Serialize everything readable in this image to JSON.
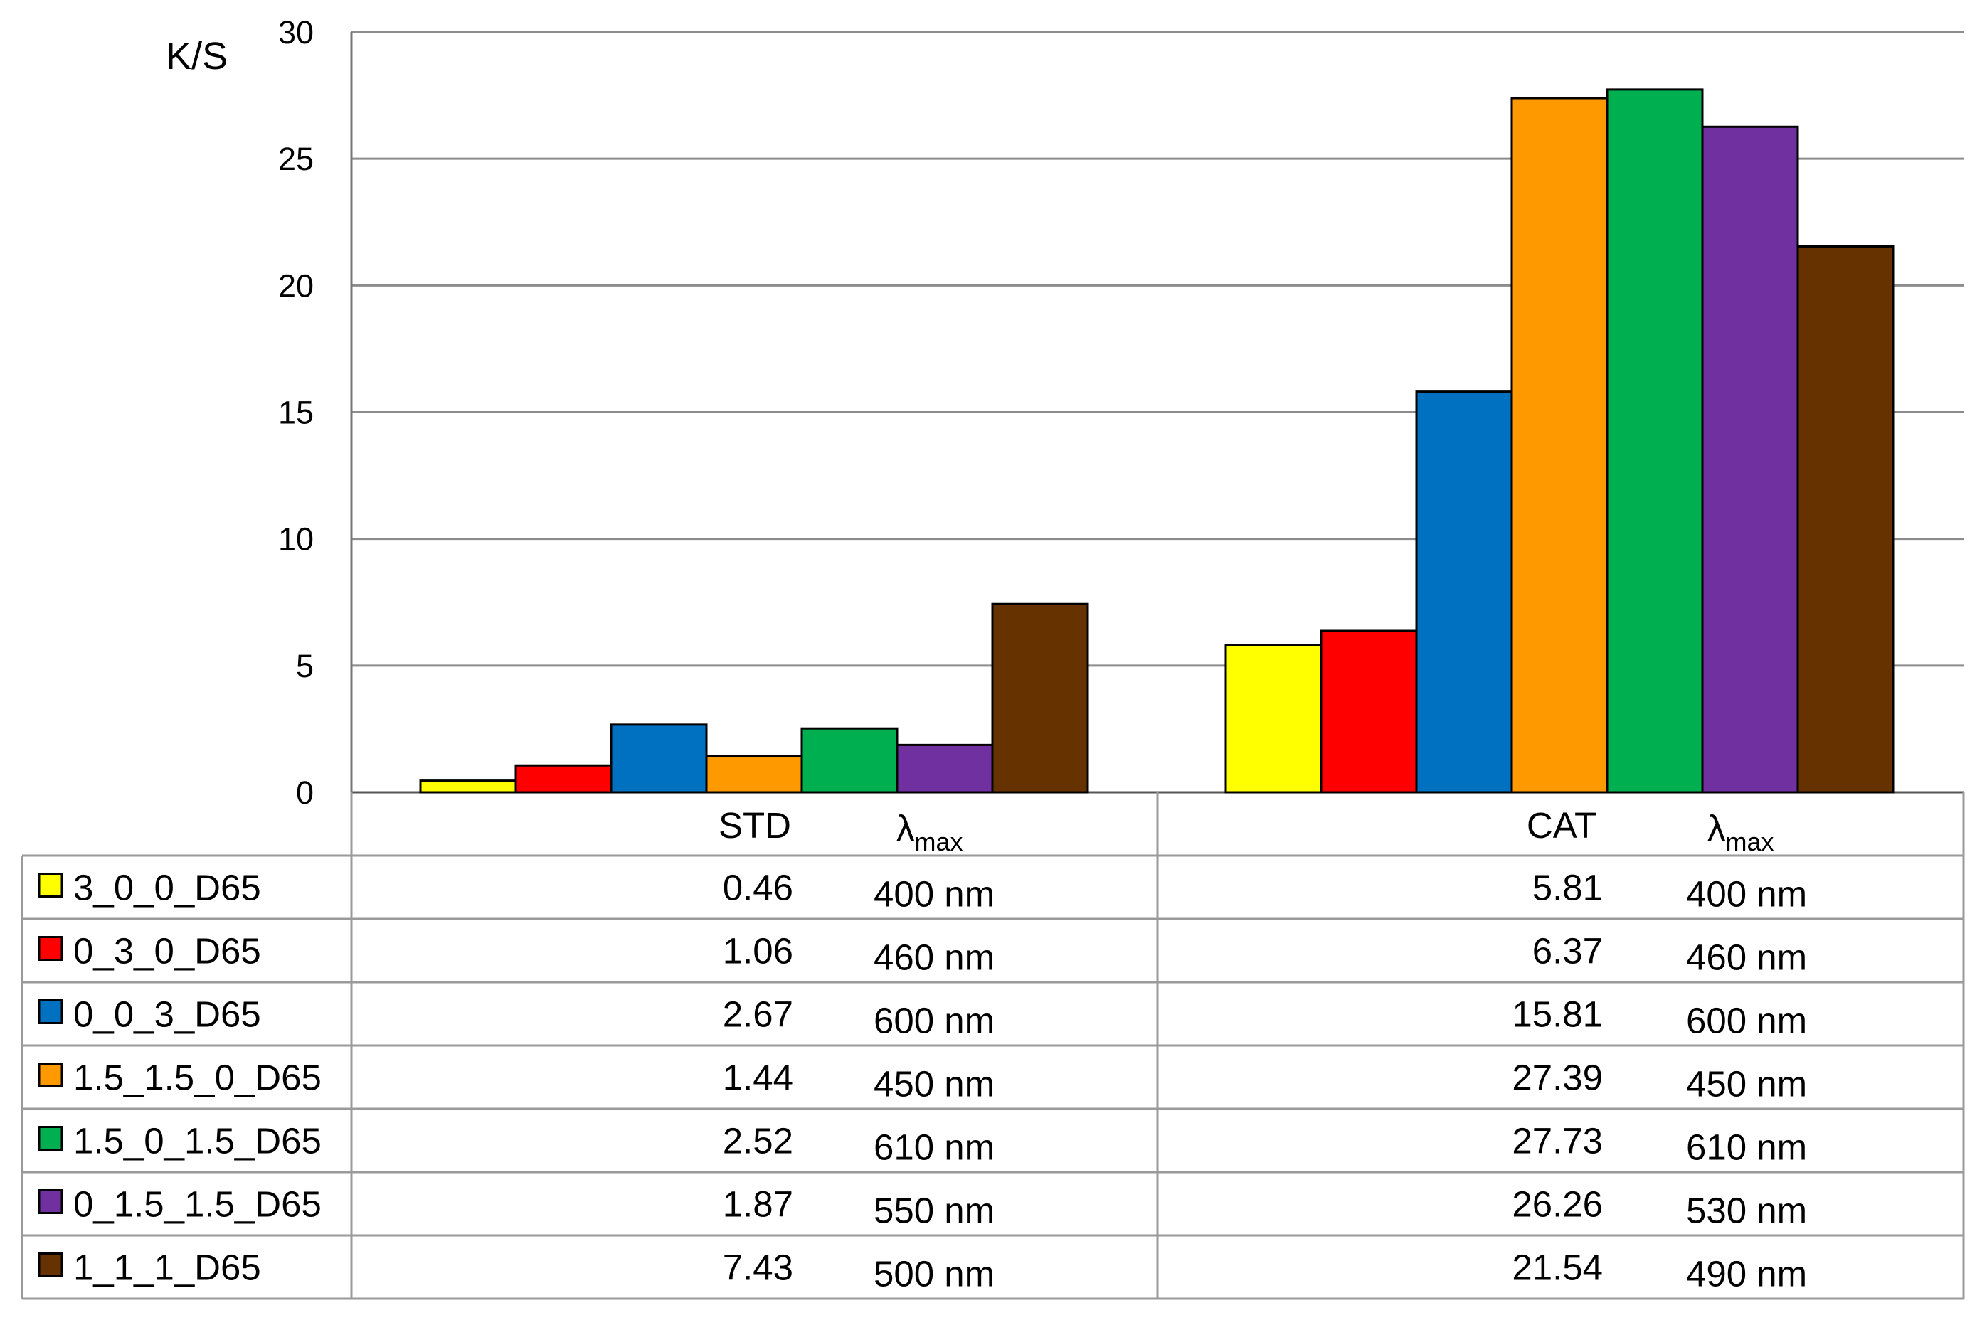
{
  "chart_data": {
    "type": "bar",
    "ylabel": "K/S",
    "ylim": [
      0,
      30
    ],
    "yticks": [
      "0",
      "5",
      "10",
      "15",
      "20",
      "25",
      "30"
    ],
    "grid": true,
    "legend_placement": "data-table-left",
    "categories": [
      "STD",
      "CAT"
    ],
    "lambda_symbol": "λ",
    "lambda_subscript": "max",
    "series": [
      {
        "name": "3_0_0_D65",
        "color": "#FFFF00",
        "values": [
          0.46,
          5.81
        ],
        "lambda_max": [
          "400 nm",
          "400 nm"
        ]
      },
      {
        "name": "0_3_0_D65",
        "color": "#FF0000",
        "values": [
          1.06,
          6.37
        ],
        "lambda_max": [
          "460 nm",
          "460 nm"
        ]
      },
      {
        "name": "0_0_3_D65",
        "color": "#0070C0",
        "values": [
          2.67,
          15.81
        ],
        "lambda_max": [
          "600 nm",
          "600 nm"
        ]
      },
      {
        "name": "1.5_1.5_0_D65",
        "color": "#FF9900",
        "values": [
          1.44,
          27.39
        ],
        "lambda_max": [
          "450 nm",
          "450 nm"
        ]
      },
      {
        "name": "1.5_0_1.5_D65",
        "color": "#00B050",
        "values": [
          2.52,
          27.73
        ],
        "lambda_max": [
          "610 nm",
          "610 nm"
        ]
      },
      {
        "name": "0_1.5_1.5_D65",
        "color": "#7030A0",
        "values": [
          1.87,
          26.26
        ],
        "lambda_max": [
          "550 nm",
          "530 nm"
        ]
      },
      {
        "name": "1_1_1_D65",
        "color": "#663300",
        "values": [
          7.43,
          21.54
        ],
        "lambda_max": [
          "500 nm",
          "490 nm"
        ]
      }
    ]
  }
}
